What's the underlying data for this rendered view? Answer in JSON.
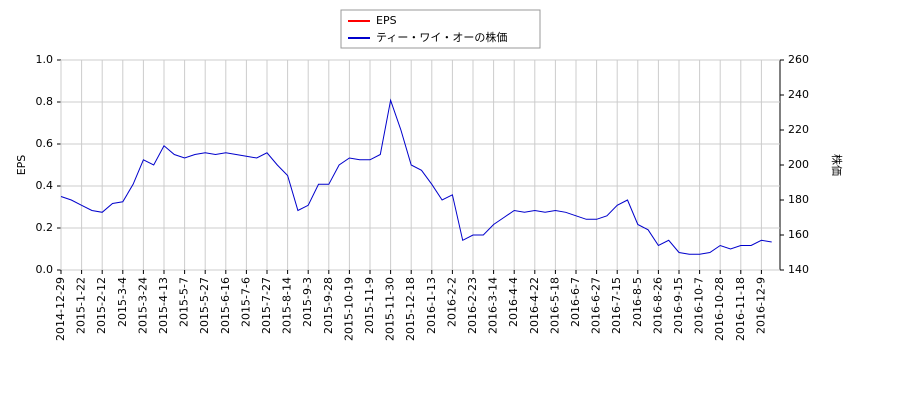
{
  "chart_data": {
    "type": "line",
    "categories": [
      "2014-12-29",
      null,
      "2015-1-22",
      null,
      "2015-2-12",
      null,
      "2015-3-4",
      null,
      "2015-3-24",
      null,
      "2015-4-13",
      null,
      "2015-5-7",
      null,
      "2015-5-27",
      null,
      "2015-6-16",
      null,
      "2015-7-6",
      null,
      "2015-7-27",
      null,
      "2015-8-14",
      null,
      "2015-9-3",
      null,
      "2015-9-28",
      null,
      "2015-10-19",
      null,
      "2015-11-9",
      null,
      "2015-11-30",
      null,
      "2015-12-18",
      null,
      "2016-1-13",
      null,
      "2016-2-2",
      null,
      "2016-2-23",
      null,
      "2016-3-14",
      null,
      "2016-4-4",
      null,
      "2016-4-22",
      null,
      "2016-5-18",
      null,
      "2016-6-7",
      null,
      "2016-6-27",
      null,
      "2016-7-15",
      null,
      "2016-8-5",
      null,
      "2016-8-26",
      null,
      "2016-9-15",
      null,
      "2016-10-7",
      null,
      "2016-10-28",
      null,
      "2016-11-18",
      null,
      "2016-12-9",
      null
    ],
    "series": [
      {
        "name": "EPS",
        "color": "#ff0000",
        "values": [
          null,
          null,
          null,
          null,
          null,
          null,
          null,
          null,
          null,
          null,
          null,
          null,
          null,
          null,
          null,
          null,
          null,
          null,
          null,
          null,
          null,
          null,
          null,
          null,
          null,
          null,
          null,
          null,
          null,
          null,
          null,
          null,
          null,
          null,
          null,
          null,
          null,
          null,
          null,
          null,
          null,
          null,
          null,
          null,
          null,
          null,
          null,
          null,
          null,
          null,
          null,
          null,
          null,
          null,
          null,
          null,
          null,
          null,
          null,
          null,
          null,
          null,
          null,
          null,
          null,
          null,
          null,
          null,
          null,
          null
        ]
      },
      {
        "name": "ティー・ワイ・オーの株価",
        "color": "#0000cc",
        "axis": "y2",
        "values": [
          182,
          180,
          177,
          174,
          173,
          178,
          179,
          189,
          203,
          200,
          211,
          206,
          204,
          206,
          207,
          206,
          207,
          206,
          205,
          204,
          207,
          200,
          194,
          174,
          177,
          189,
          189,
          200,
          204,
          203,
          203,
          206,
          237,
          220,
          200,
          197,
          189,
          180,
          183,
          157,
          160,
          160,
          166,
          170,
          174,
          173,
          174,
          173,
          174,
          173,
          171,
          169,
          169,
          171,
          177,
          180,
          166,
          163,
          154,
          157,
          150,
          149,
          149,
          150,
          154,
          152,
          154,
          154,
          157,
          156
        ]
      }
    ],
    "ylabel": "EPS",
    "y2label": "株価",
    "ylim": [
      0,
      1
    ],
    "yticks": [
      {
        "value": 0,
        "label": "0.0"
      },
      {
        "value": 0.2,
        "label": "0.2"
      },
      {
        "value": 0.4,
        "label": "0.4"
      },
      {
        "value": 0.6,
        "label": "0.6"
      },
      {
        "value": 0.8,
        "label": "0.8"
      },
      {
        "value": 1,
        "label": "1.0"
      }
    ],
    "y2lim": [
      140,
      260
    ],
    "y2ticks": [
      140,
      160,
      180,
      200,
      220,
      240,
      260
    ],
    "grid": true,
    "legend": "top"
  }
}
